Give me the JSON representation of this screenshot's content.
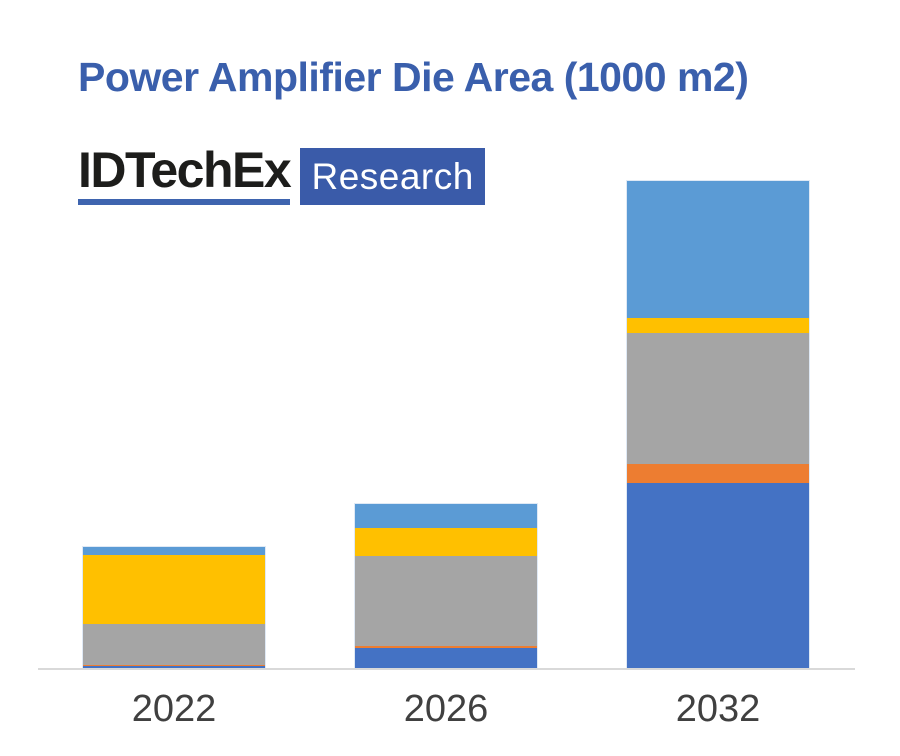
{
  "page": {
    "background": "#ffffff"
  },
  "title": {
    "text": "Power Amplifier Die Area (1000 m2)",
    "color": "#3a5fac"
  },
  "logo": {
    "wordmark": "IDTechEx",
    "wordmark_color": "#1d1d1b",
    "underline_color": "#3e64af",
    "badge_text": "Research",
    "badge_bg": "#3a5ba9",
    "badge_text_color": "#ffffff"
  },
  "chart_data": {
    "type": "bar",
    "stacked": true,
    "title": "Power Amplifier Die Area (1000 m2)",
    "xlabel": "",
    "ylabel": "",
    "categories": [
      "2022",
      "2026",
      "2032"
    ],
    "series": [
      {
        "name": "blue-bottom-segment",
        "color": "#4472c4",
        "values": [
          3,
          21,
          186
        ]
      },
      {
        "name": "orange-segment",
        "color": "#ed7d31",
        "values": [
          1,
          2.5,
          19
        ]
      },
      {
        "name": "gray-segment",
        "color": "#a5a5a5",
        "values": [
          41,
          90,
          131
        ]
      },
      {
        "name": "yellow-segment",
        "color": "#ffc000",
        "values": [
          69,
          28,
          15
        ]
      },
      {
        "name": "lightblue-top-segment",
        "color": "#5b9bd5",
        "values": [
          8,
          24,
          137
        ]
      }
    ],
    "stack_totals": [
      122,
      165.5,
      488
    ],
    "units_note": "y-axis has no tick labels or gridlines; values are relative units read from bar heights (1 unit = 1 px)",
    "legend": "none",
    "grid": false,
    "axis_line_color": "#d9d9d9",
    "tick_label_color": "#404040"
  }
}
